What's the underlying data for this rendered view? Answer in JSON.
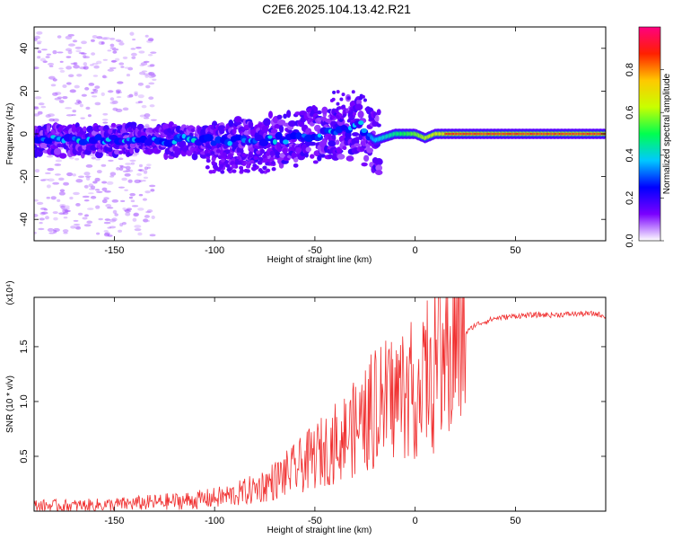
{
  "title": "C2E6.2025.104.13.42.R21",
  "chart_data": [
    {
      "type": "heatmap",
      "xlabel": "Height of straight line (km)",
      "ylabel": "Frequency (Hz)",
      "xlim": [
        -190,
        95
      ],
      "ylim": [
        -50,
        50
      ],
      "x_ticks": [
        -150,
        -100,
        -50,
        0,
        50
      ],
      "y_ticks": [
        -40,
        -20,
        0,
        20,
        40
      ],
      "colorbar": {
        "label": "Normalized spectral amplitude",
        "range": [
          0,
          1
        ],
        "ticks": [
          "0.0",
          "0.2",
          "0.4",
          "0.6",
          "0.8"
        ],
        "colors": [
          "#ffffff",
          "#7a00ff",
          "#0000ff",
          "#00c8ff",
          "#00ff50",
          "#c8ff00",
          "#ffc800",
          "#ff2000",
          "#ff0080"
        ]
      },
      "ridge": {
        "height_km": [
          -190,
          -160,
          -130,
          -100,
          -80,
          -60,
          -45,
          -35,
          -28,
          -24,
          -20,
          -10,
          0,
          5,
          10,
          15,
          50,
          95
        ],
        "frequency_hz": [
          -3,
          -3,
          -3,
          -3,
          -3,
          -2,
          0,
          2,
          4,
          0,
          -3,
          0,
          0,
          -2,
          0,
          0,
          0,
          0
        ]
      }
    },
    {
      "type": "line",
      "xlabel": "Height of straight line (km)",
      "ylabel": "SNR (10 * v/v)",
      "y_multiplier": "(x10⁴)",
      "xlim": [
        -190,
        95
      ],
      "ylim": [
        0,
        1.95
      ],
      "x_ticks": [
        -150,
        -100,
        -50,
        0,
        50
      ],
      "y_ticks": [
        0.5,
        1.0,
        1.5
      ],
      "series_color": "#f03030",
      "series": [
        {
          "x": [
            -190,
            -170,
            -150,
            -130,
            -110,
            -100,
            -90,
            -80,
            -70,
            -60,
            -50,
            -40,
            -30,
            -20,
            -15,
            -10,
            -5,
            0,
            5,
            10,
            15,
            20,
            25,
            30,
            40,
            50,
            60,
            70,
            80,
            90,
            95
          ],
          "y": [
            0.05,
            0.05,
            0.06,
            0.08,
            0.1,
            0.12,
            0.15,
            0.2,
            0.28,
            0.38,
            0.5,
            0.62,
            0.75,
            0.9,
            1.0,
            1.05,
            1.1,
            1.1,
            1.15,
            1.25,
            1.35,
            1.5,
            1.62,
            1.7,
            1.76,
            1.78,
            1.79,
            1.79,
            1.8,
            1.8,
            1.78
          ]
        }
      ]
    }
  ]
}
